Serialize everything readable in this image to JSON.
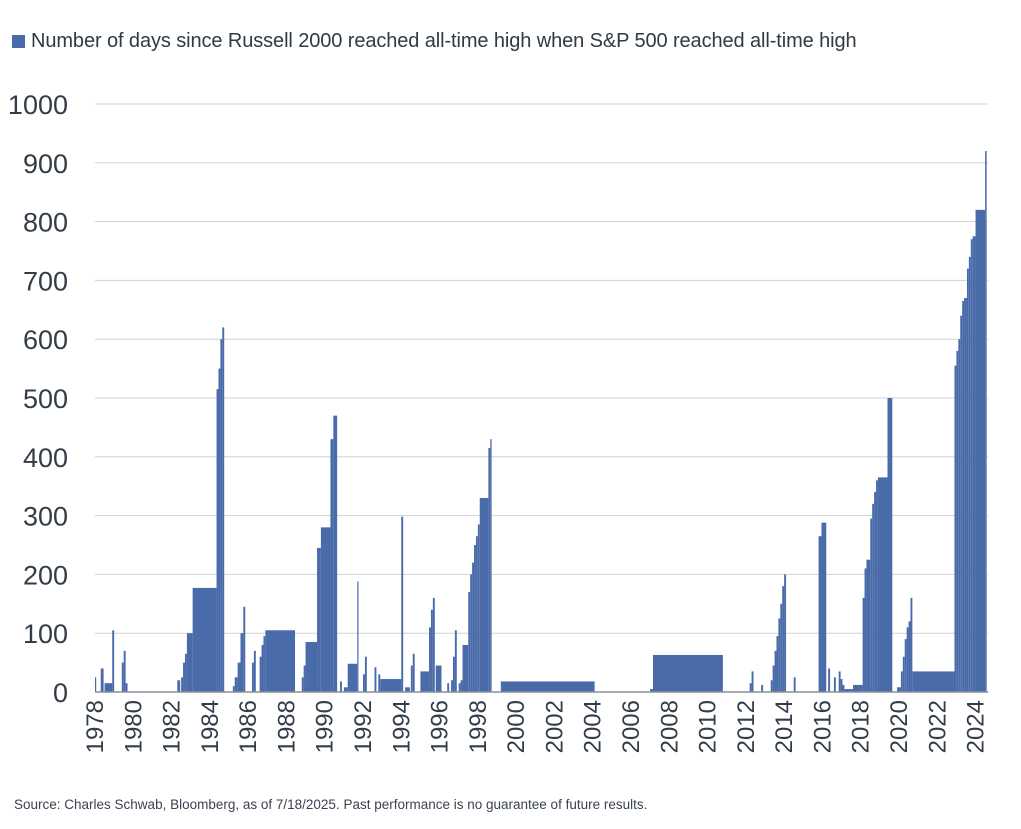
{
  "legend": {
    "label": "Number of days since Russell 2000 reached all-time high when S&P 500 reached all-time high"
  },
  "source": "Source: Charles Schwab, Bloomberg, as of 7/18/2025.  Past performance is no guarantee of future results.",
  "colors": {
    "bar": "#4a6ba9",
    "grid": "#cfd2d6",
    "axis": "#8a8f96",
    "text": "#333d48"
  },
  "chart_data": {
    "type": "area",
    "series": [
      {
        "name": "Number of days since Russell 2000 reached all-time high when S&P 500 reached all-time high"
      }
    ],
    "x_range": [
      "1978",
      "2025"
    ],
    "ylim": [
      0,
      1000
    ],
    "y_ticks": [
      0,
      100,
      200,
      300,
      400,
      500,
      600,
      700,
      800,
      900,
      1000
    ],
    "x_tick_labels": [
      "1978",
      "1980",
      "1982",
      "1984",
      "1986",
      "1988",
      "1990",
      "1992",
      "1994",
      "1996",
      "1998",
      "2000",
      "2002",
      "2004",
      "2006",
      "2008",
      "2010",
      "2012",
      "2014",
      "2016",
      "2018",
      "2020",
      "2022",
      "2024"
    ],
    "grid": "horizontal",
    "legend_position": "top",
    "segments": [
      [
        1978.0,
        1978.05,
        25
      ],
      [
        1978.3,
        1978.45,
        40
      ],
      [
        1978.5,
        1978.9,
        15
      ],
      [
        1978.9,
        1979.0,
        105
      ],
      [
        1979.4,
        1979.5,
        50
      ],
      [
        1979.5,
        1979.6,
        70
      ],
      [
        1979.6,
        1979.7,
        15
      ],
      [
        1982.3,
        1982.45,
        20
      ],
      [
        1982.5,
        1982.6,
        25
      ],
      [
        1982.6,
        1982.7,
        50
      ],
      [
        1982.7,
        1982.8,
        65
      ],
      [
        1982.8,
        1983.1,
        100
      ],
      [
        1983.1,
        1984.35,
        177
      ],
      [
        1984.35,
        1984.45,
        515
      ],
      [
        1984.45,
        1984.55,
        550
      ],
      [
        1984.55,
        1984.65,
        600
      ],
      [
        1984.65,
        1984.75,
        620
      ],
      [
        1985.2,
        1985.3,
        10
      ],
      [
        1985.3,
        1985.45,
        25
      ],
      [
        1985.45,
        1985.6,
        50
      ],
      [
        1985.6,
        1985.75,
        100
      ],
      [
        1985.75,
        1985.85,
        145
      ],
      [
        1986.2,
        1986.3,
        50
      ],
      [
        1986.3,
        1986.4,
        70
      ],
      [
        1986.6,
        1986.7,
        60
      ],
      [
        1986.7,
        1986.8,
        80
      ],
      [
        1986.8,
        1986.9,
        95
      ],
      [
        1986.9,
        1988.45,
        105
      ],
      [
        1988.8,
        1988.9,
        25
      ],
      [
        1988.9,
        1989.0,
        45
      ],
      [
        1989.0,
        1989.6,
        85
      ],
      [
        1989.6,
        1989.8,
        245
      ],
      [
        1989.8,
        1990.3,
        280
      ],
      [
        1990.3,
        1990.45,
        430
      ],
      [
        1990.45,
        1990.65,
        470
      ],
      [
        1990.8,
        1990.9,
        18
      ],
      [
        1991.0,
        1991.2,
        8
      ],
      [
        1991.2,
        1991.7,
        48
      ],
      [
        1991.7,
        1991.75,
        188
      ],
      [
        1992.0,
        1992.1,
        30
      ],
      [
        1992.1,
        1992.2,
        60
      ],
      [
        1992.6,
        1992.7,
        42
      ],
      [
        1992.8,
        1992.9,
        30
      ],
      [
        1992.9,
        1994.0,
        22
      ],
      [
        1994.0,
        1994.1,
        298
      ],
      [
        1994.2,
        1994.45,
        8
      ],
      [
        1994.5,
        1994.6,
        45
      ],
      [
        1994.6,
        1994.7,
        65
      ],
      [
        1995.0,
        1995.45,
        35
      ],
      [
        1995.45,
        1995.55,
        110
      ],
      [
        1995.55,
        1995.65,
        140
      ],
      [
        1995.65,
        1995.75,
        160
      ],
      [
        1995.8,
        1996.1,
        45
      ],
      [
        1996.4,
        1996.5,
        15
      ],
      [
        1996.6,
        1996.7,
        20
      ],
      [
        1996.7,
        1996.8,
        60
      ],
      [
        1996.8,
        1996.9,
        105
      ],
      [
        1997.0,
        1997.1,
        15
      ],
      [
        1997.1,
        1997.2,
        20
      ],
      [
        1997.2,
        1997.5,
        80
      ],
      [
        1997.5,
        1997.6,
        170
      ],
      [
        1997.6,
        1997.7,
        200
      ],
      [
        1997.7,
        1997.8,
        220
      ],
      [
        1997.8,
        1997.9,
        250
      ],
      [
        1997.9,
        1998.0,
        265
      ],
      [
        1998.0,
        1998.1,
        285
      ],
      [
        1998.1,
        1998.55,
        330
      ],
      [
        1998.55,
        1998.65,
        415
      ],
      [
        1998.65,
        1998.72,
        430
      ],
      [
        1999.2,
        2004.1,
        18
      ],
      [
        2007.0,
        2007.15,
        5
      ],
      [
        2007.15,
        2010.8,
        63
      ],
      [
        2012.2,
        2012.3,
        15
      ],
      [
        2012.3,
        2012.4,
        35
      ],
      [
        2012.8,
        2012.9,
        12
      ],
      [
        2013.3,
        2013.4,
        20
      ],
      [
        2013.4,
        2013.5,
        45
      ],
      [
        2013.5,
        2013.6,
        70
      ],
      [
        2013.6,
        2013.7,
        95
      ],
      [
        2013.7,
        2013.8,
        125
      ],
      [
        2013.8,
        2013.9,
        150
      ],
      [
        2013.9,
        2014.0,
        180
      ],
      [
        2014.0,
        2014.1,
        200
      ],
      [
        2014.5,
        2014.6,
        25
      ],
      [
        2015.8,
        2015.95,
        265
      ],
      [
        2015.95,
        2016.2,
        288
      ],
      [
        2016.3,
        2016.4,
        40
      ],
      [
        2016.6,
        2016.7,
        25
      ],
      [
        2016.85,
        2016.95,
        35
      ],
      [
        2016.95,
        2017.05,
        22
      ],
      [
        2017.05,
        2017.15,
        12
      ],
      [
        2017.15,
        2017.6,
        5
      ],
      [
        2017.6,
        2018.1,
        12
      ],
      [
        2018.1,
        2018.2,
        160
      ],
      [
        2018.2,
        2018.3,
        210
      ],
      [
        2018.3,
        2018.5,
        225
      ],
      [
        2018.5,
        2018.6,
        295
      ],
      [
        2018.6,
        2018.7,
        320
      ],
      [
        2018.7,
        2018.8,
        340
      ],
      [
        2018.8,
        2018.9,
        360
      ],
      [
        2018.9,
        2019.4,
        365
      ],
      [
        2019.4,
        2019.65,
        500
      ],
      [
        2019.9,
        2020.1,
        8
      ],
      [
        2020.1,
        2020.2,
        35
      ],
      [
        2020.2,
        2020.3,
        60
      ],
      [
        2020.3,
        2020.4,
        90
      ],
      [
        2020.4,
        2020.5,
        110
      ],
      [
        2020.5,
        2020.6,
        120
      ],
      [
        2020.6,
        2020.7,
        160
      ],
      [
        2020.7,
        2022.9,
        35
      ],
      [
        2022.9,
        2023.0,
        555
      ],
      [
        2023.0,
        2023.1,
        580
      ],
      [
        2023.1,
        2023.2,
        600
      ],
      [
        2023.2,
        2023.3,
        640
      ],
      [
        2023.3,
        2023.4,
        665
      ],
      [
        2023.4,
        2023.55,
        670
      ],
      [
        2023.55,
        2023.65,
        720
      ],
      [
        2023.65,
        2023.75,
        740
      ],
      [
        2023.75,
        2023.85,
        770
      ],
      [
        2023.85,
        2024.0,
        775
      ],
      [
        2024.0,
        2024.5,
        820
      ],
      [
        2024.5,
        2024.58,
        920
      ]
    ]
  }
}
